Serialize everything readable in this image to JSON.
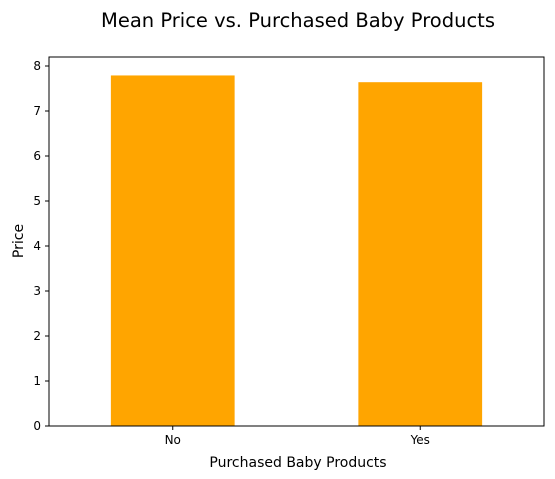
{
  "chart_data": {
    "type": "bar",
    "title": "Mean Price vs. Purchased Baby Products",
    "xlabel": "Purchased Baby Products",
    "ylabel": "Price",
    "categories": [
      "No",
      "Yes"
    ],
    "values": [
      7.79,
      7.64
    ],
    "ylim": [
      0,
      8.2
    ],
    "yticks": [
      0,
      1,
      2,
      3,
      4,
      5,
      6,
      7,
      8
    ],
    "grid": false,
    "bar_color": "#ffa500"
  }
}
